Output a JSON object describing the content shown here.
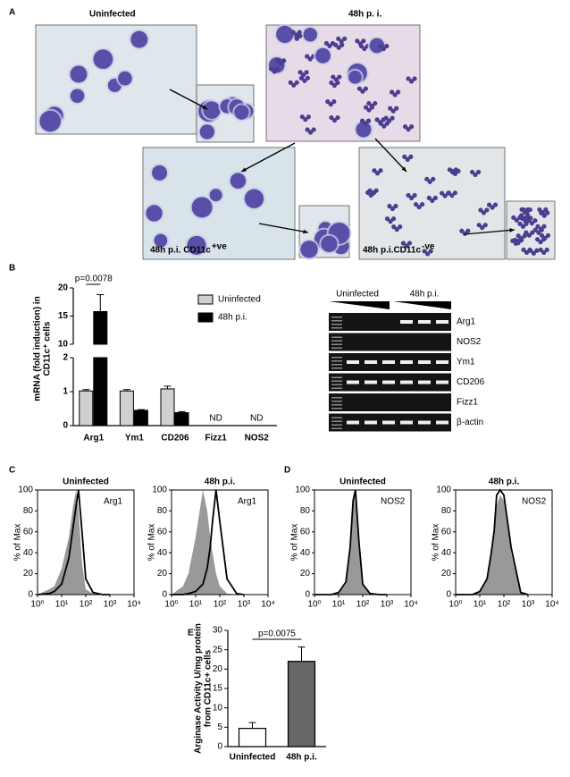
{
  "figure": {
    "panel_labels": [
      "A",
      "B",
      "C",
      "D",
      "E"
    ],
    "panel_a": {
      "titles": [
        "Uninfected",
        "48h p. i."
      ],
      "captions": [
        {
          "text": "48h p.i. CD11c",
          "sup": "+ve"
        },
        {
          "text": "48h p.i.CD11c",
          "sup": "-ve"
        }
      ]
    },
    "gel": {
      "groups": [
        "Uninfected",
        "48h p.i."
      ],
      "rows": [
        "Arg1",
        "NOS2",
        "Ym1",
        "CD206",
        "Fizz1",
        "β-actin"
      ]
    }
  },
  "chart_data": [
    {
      "type": "bar-broken-axis",
      "y_label": [
        "mRNA (fold induction) in",
        "CD11c⁺ cells"
      ],
      "categories": [
        "Arg1",
        "Ym1",
        "CD206",
        "Fizz1",
        "NOS2"
      ],
      "category_notes": [
        null,
        null,
        null,
        "ND",
        "ND"
      ],
      "series": [
        {
          "name": "Uninfected",
          "color": "#d0d0d0",
          "values": [
            1.02,
            1.02,
            1.08,
            null,
            null
          ],
          "errors": [
            0.04,
            0.04,
            0.08,
            null,
            null
          ]
        },
        {
          "name": "48h p.i.",
          "color": "#000000",
          "values": [
            15.8,
            0.45,
            0.38,
            null,
            null
          ],
          "errors": [
            3.0,
            0.02,
            0.03,
            null,
            null
          ]
        }
      ],
      "segments": [
        {
          "ylim": [
            0,
            2
          ],
          "yticks": [
            0,
            1,
            2
          ]
        },
        {
          "ylim": [
            10,
            20
          ],
          "yticks": [
            10,
            15,
            20
          ]
        }
      ],
      "annotation": "p=0.0078",
      "legend": "top-right"
    },
    {
      "type": "histogram-overlay",
      "title": "Uninfected",
      "label": "Arg1",
      "y_label": "% of Max",
      "x": [
        1,
        3,
        5,
        10,
        20,
        30,
        40,
        50,
        70,
        100,
        200,
        500,
        1000
      ],
      "series": [
        {
          "color": "#999999",
          "fill": true,
          "values": [
            0,
            5,
            8,
            25,
            55,
            85,
            100,
            80,
            30,
            5,
            1,
            0,
            0
          ]
        },
        {
          "color": "#000000",
          "fill": false,
          "values": [
            0,
            1,
            3,
            10,
            35,
            65,
            85,
            100,
            60,
            15,
            2,
            0,
            0
          ]
        }
      ],
      "log_x": true,
      "xlim": [
        1,
        10000
      ],
      "xticks": [
        {
          "value": 1,
          "label": "10⁰"
        },
        {
          "value": 10,
          "label": "10¹"
        },
        {
          "value": 100,
          "label": "10²"
        },
        {
          "value": 1000,
          "label": "10³"
        },
        {
          "value": 10000,
          "label": "10⁴"
        }
      ],
      "ylim": [
        0,
        100
      ],
      "yticks": [
        0,
        20,
        40,
        60,
        80,
        100
      ]
    },
    {
      "type": "histogram-overlay",
      "title": "48h p.i.",
      "label": "Arg1",
      "y_label": "% of Max",
      "x": [
        1,
        3,
        5,
        10,
        20,
        30,
        40,
        50,
        70,
        100,
        200,
        500,
        1000
      ],
      "series": [
        {
          "color": "#999999",
          "fill": true,
          "values": [
            0,
            8,
            20,
            55,
            100,
            80,
            55,
            40,
            20,
            8,
            1,
            0,
            0
          ]
        },
        {
          "color": "#000000",
          "fill": false,
          "values": [
            0,
            0,
            1,
            3,
            10,
            25,
            45,
            70,
            100,
            70,
            15,
            1,
            0
          ]
        }
      ],
      "log_x": true,
      "xlim": [
        1,
        10000
      ],
      "xticks": [
        {
          "value": 1,
          "label": "10⁰"
        },
        {
          "value": 10,
          "label": "10¹"
        },
        {
          "value": 100,
          "label": "10²"
        },
        {
          "value": 1000,
          "label": "10³"
        },
        {
          "value": 10000,
          "label": "10⁴"
        }
      ],
      "ylim": [
        0,
        100
      ],
      "yticks": [
        0,
        20,
        40,
        60,
        80,
        100
      ]
    },
    {
      "type": "histogram-overlay",
      "title": "Uninfected",
      "label": "NOS2",
      "y_label": "% of Max",
      "x": [
        1,
        3,
        5,
        10,
        20,
        30,
        40,
        50,
        70,
        100,
        200,
        500,
        1000
      ],
      "series": [
        {
          "color": "#999999",
          "fill": true,
          "values": [
            0,
            0,
            0,
            2,
            10,
            40,
            85,
            100,
            50,
            10,
            1,
            0,
            0
          ]
        },
        {
          "color": "#000000",
          "fill": false,
          "values": [
            0,
            0,
            0,
            2,
            12,
            45,
            90,
            100,
            50,
            10,
            1,
            0,
            0
          ]
        }
      ],
      "log_x": true,
      "xlim": [
        1,
        10000
      ],
      "xticks": [
        {
          "value": 1,
          "label": "10⁰"
        },
        {
          "value": 10,
          "label": "10¹"
        },
        {
          "value": 100,
          "label": "10²"
        },
        {
          "value": 1000,
          "label": "10³"
        },
        {
          "value": 10000,
          "label": "10⁴"
        }
      ],
      "ylim": [
        0,
        100
      ],
      "yticks": [
        0,
        20,
        40,
        60,
        80,
        100
      ]
    },
    {
      "type": "histogram-overlay",
      "title": "48h p.i.",
      "label": "NOS2",
      "y_label": "% of Max",
      "x": [
        1,
        3,
        5,
        10,
        20,
        30,
        40,
        50,
        70,
        100,
        200,
        500,
        1000
      ],
      "series": [
        {
          "color": "#999999",
          "fill": true,
          "values": [
            0,
            0,
            0,
            3,
            15,
            40,
            60,
            85,
            95,
            90,
            40,
            2,
            0
          ]
        },
        {
          "color": "#000000",
          "fill": false,
          "values": [
            0,
            0,
            0,
            3,
            15,
            40,
            62,
            95,
            100,
            95,
            45,
            2,
            0
          ]
        }
      ],
      "log_x": true,
      "xlim": [
        1,
        10000
      ],
      "xticks": [
        {
          "value": 1,
          "label": "10⁰"
        },
        {
          "value": 10,
          "label": "10¹"
        },
        {
          "value": 100,
          "label": "10²"
        },
        {
          "value": 1000,
          "label": "10³"
        },
        {
          "value": 10000,
          "label": "10⁴"
        }
      ],
      "ylim": [
        0,
        100
      ],
      "yticks": [
        0,
        20,
        40,
        60,
        80,
        100
      ]
    },
    {
      "type": "bar",
      "y_label": [
        "Arginase Activity U/mg protein",
        "from CD11c+ cells"
      ],
      "categories": [
        "Uninfected",
        "48h p.i."
      ],
      "values": [
        4.7,
        22
      ],
      "errors": [
        1.5,
        3.7
      ],
      "colors": [
        "#ffffff",
        "#666666"
      ],
      "ylim": [
        0,
        30
      ],
      "yticks": [
        0,
        5,
        10,
        15,
        20,
        25,
        30
      ],
      "annotation": "p=0.0075"
    }
  ]
}
